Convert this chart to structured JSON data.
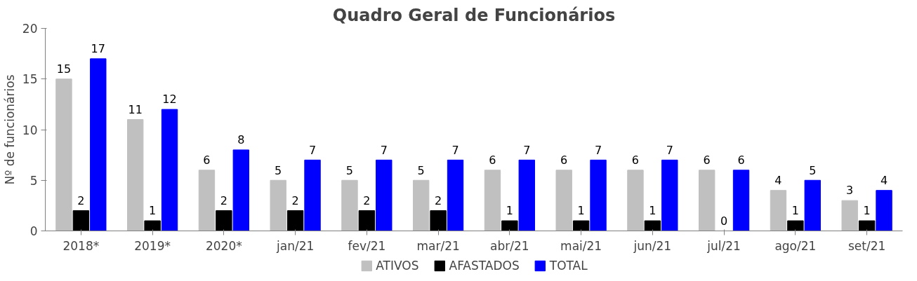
{
  "chart_data": {
    "type": "bar",
    "title": "Quadro Geral de Funcionários",
    "ylabel": "Nº de funcionários",
    "categories": [
      "2018*",
      "2019*",
      "2020*",
      "jan/21",
      "fev/21",
      "mar/21",
      "abr/21",
      "mai/21",
      "jun/21",
      "jul/21",
      "ago/21",
      "set/21"
    ],
    "series": [
      {
        "name": "ATIVOS",
        "color": "#c0c0c0",
        "values": [
          15,
          11,
          6,
          5,
          5,
          5,
          6,
          6,
          6,
          6,
          4,
          3
        ]
      },
      {
        "name": "AFASTADOS",
        "color": "#000000",
        "values": [
          2,
          1,
          2,
          2,
          2,
          2,
          1,
          1,
          1,
          0,
          1,
          1
        ]
      },
      {
        "name": "TOTAL",
        "color": "#0000ff",
        "values": [
          17,
          12,
          8,
          7,
          7,
          7,
          7,
          7,
          7,
          6,
          5,
          4
        ]
      }
    ],
    "ylim": [
      0,
      20
    ],
    "yticks": [
      0,
      5,
      10,
      15,
      20
    ],
    "data_labels": true,
    "legend": "bottom"
  }
}
